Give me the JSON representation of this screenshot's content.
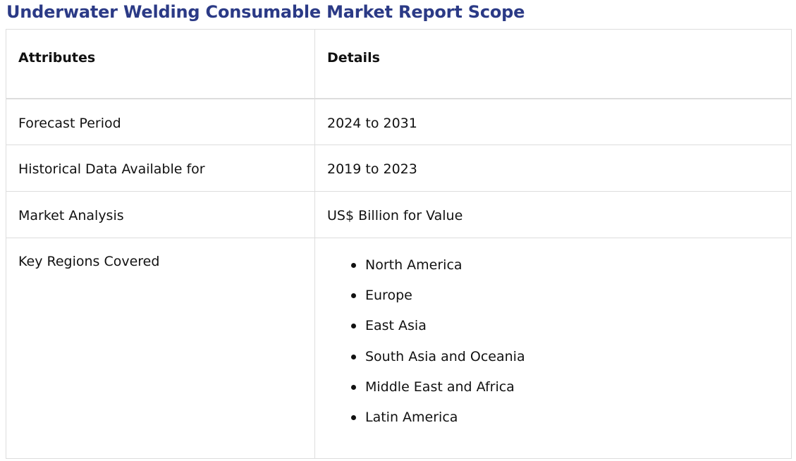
{
  "page": {
    "title": "Underwater Welding Consumable Market Report Scope"
  },
  "table": {
    "headers": {
      "attributes": "Attributes",
      "details": "Details"
    },
    "rows": [
      {
        "attribute": "Forecast Period",
        "detail": "2024 to 2031"
      },
      {
        "attribute": "Historical Data Available for",
        "detail": "2019 to 2023"
      },
      {
        "attribute": "Market Analysis",
        "detail": "US$ Billion for Value"
      }
    ],
    "regions": {
      "attribute": "Key Regions Covered",
      "items": [
        "North America",
        "Europe",
        "East Asia",
        "South Asia and Oceania",
        "Middle East and Africa",
        "Latin America"
      ]
    }
  },
  "colors": {
    "title": "#2b3a86",
    "border": "#dddddd",
    "text": "#111111"
  }
}
